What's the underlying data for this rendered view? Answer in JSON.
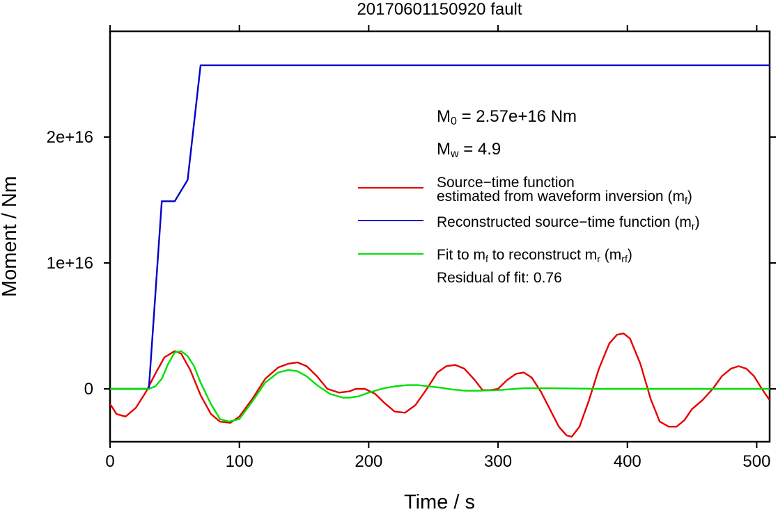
{
  "chart_data": {
    "type": "line",
    "title": "20170601150920 fault",
    "xlabel": "Time / s",
    "ylabel": "Moment / Nm",
    "xlim": [
      0,
      510
    ],
    "ylim": [
      -4200000000000000.0,
      2.84e+16
    ],
    "x_ticks": [
      0,
      100,
      200,
      300,
      400,
      500
    ],
    "x_tick_labels": [
      "0",
      "100",
      "200",
      "300",
      "400",
      "500"
    ],
    "y_ticks": [
      0,
      1e+16,
      2e+16
    ],
    "y_tick_labels": [
      "0",
      "1e+16",
      "2e+16"
    ],
    "grid": false,
    "legend_position": "top-right",
    "series": [
      {
        "name": "estimated from waveform inversion (mf)",
        "color": "#e60000",
        "x": [
          0,
          5,
          12,
          20,
          28,
          35,
          42,
          50,
          55,
          62,
          70,
          78,
          85,
          93,
          100,
          110,
          120,
          130,
          138,
          145,
          152,
          160,
          168,
          177,
          185,
          190,
          197,
          205,
          212,
          220,
          228,
          236,
          245,
          253,
          260,
          267,
          274,
          282,
          288,
          294,
          300,
          307,
          314,
          320,
          326,
          333,
          340,
          347,
          353,
          357,
          363,
          370,
          378,
          386,
          392,
          397,
          402,
          410,
          418,
          425,
          432,
          438,
          444,
          450,
          458,
          466,
          473,
          480,
          486,
          492,
          498,
          504,
          510
        ],
        "y": [
          -1200000000000000.0,
          -2000000000000000.0,
          -2200000000000000.0,
          -1500000000000000.0,
          -200000000000000.0,
          1200000000000000.0,
          2500000000000000.0,
          3000000000000000.0,
          2800000000000000.0,
          1500000000000000.0,
          -500000000000000.0,
          -2000000000000000.0,
          -2600000000000000.0,
          -2700000000000000.0,
          -2200000000000000.0,
          -800000000000000.0,
          800000000000000.0,
          1700000000000000.0,
          2000000000000000.0,
          2100000000000000.0,
          1800000000000000.0,
          1000000000000000.0,
          0.0,
          -300000000000000.0,
          -200000000000000.0,
          0.0,
          0.0,
          -400000000000000.0,
          -1100000000000000.0,
          -1800000000000000.0,
          -1900000000000000.0,
          -1300000000000000.0,
          0.0,
          1300000000000000.0,
          1800000000000000.0,
          1900000000000000.0,
          1600000000000000.0,
          700000000000000.0,
          -100000000000000.0,
          -100000000000000.0,
          0.0,
          700000000000000.0,
          1200000000000000.0,
          1300000000000000.0,
          900000000000000.0,
          -200000000000000.0,
          -1600000000000000.0,
          -3000000000000000.0,
          -3700000000000000.0,
          -3800000000000000.0,
          -3000000000000000.0,
          -1000000000000000.0,
          1600000000000000.0,
          3600000000000000.0,
          4300000000000000.0,
          4400000000000000.0,
          4000000000000000.0,
          2000000000000000.0,
          -800000000000000.0,
          -2600000000000000.0,
          -3000000000000000.0,
          -3000000000000000.0,
          -2500000000000000.0,
          -1600000000000000.0,
          -900000000000000.0,
          0.0,
          1000000000000000.0,
          1600000000000000.0,
          1800000000000000.0,
          1600000000000000.0,
          1000000000000000.0,
          0.0,
          -900000000000000.0
        ]
      },
      {
        "name": "Reconstructed source–time function (mr)",
        "color": "#0000cc",
        "x": [
          0,
          30,
          40,
          50,
          60,
          70,
          510
        ],
        "y": [
          0,
          0,
          1.49e+16,
          1.49e+16,
          1.66e+16,
          2.57e+16,
          2.57e+16
        ]
      },
      {
        "name": "Fit to mf to reconstruct mr (mrf)",
        "color": "#00e000",
        "x": [
          0,
          30,
          35,
          40,
          45,
          50,
          55,
          60,
          65,
          70,
          78,
          85,
          92,
          100,
          110,
          120,
          130,
          138,
          145,
          152,
          160,
          170,
          180,
          185,
          192,
          200,
          210,
          220,
          230,
          238,
          246,
          255,
          265,
          275,
          285,
          300,
          320,
          340,
          380,
          420,
          460,
          510
        ],
        "y": [
          0,
          0,
          200000000000000.0,
          800000000000000.0,
          2000000000000000.0,
          2900000000000000.0,
          3000000000000000.0,
          2600000000000000.0,
          1800000000000000.0,
          500000000000000.0,
          -1200000000000000.0,
          -2400000000000000.0,
          -2600000000000000.0,
          -2400000000000000.0,
          -1000000000000000.0,
          500000000000000.0,
          1300000000000000.0,
          1500000000000000.0,
          1400000000000000.0,
          1000000000000000.0,
          300000000000000.0,
          -400000000000000.0,
          -700000000000000.0,
          -700000000000000.0,
          -600000000000000.0,
          -300000000000000.0,
          0.0,
          200000000000000.0,
          300000000000000.0,
          300000000000000.0,
          200000000000000.0,
          100000000000000.0,
          -50000000000000.0,
          -150000000000000.0,
          -150000000000000.0,
          -100000000000000.0,
          50000000000000.0,
          50000000000000.0,
          0.0,
          0.0,
          0.0,
          0.0
        ]
      }
    ],
    "annotations": {
      "m0_prefix": "M",
      "m0_sub": "0",
      "m0_text": " = 2.57e+16 Nm",
      "mw_prefix": "M",
      "mw_sub": "w",
      "mw_text": " = 4.9",
      "legend_red_line1": "Source−time function",
      "legend_red_line2": "estimated from waveform inversion (m",
      "legend_red_sub": "f",
      "legend_blue": "Reconstructed source−time function (m",
      "legend_blue_sub": "r",
      "legend_green_a": "Fit to m",
      "legend_green_sub1": "f",
      "legend_green_b": " to reconstruct m",
      "legend_green_sub2": "r",
      "legend_green_c": " (m",
      "legend_green_sub3": "rf",
      "close_paren": ")",
      "residual": "Residual of fit: 0.76"
    }
  }
}
